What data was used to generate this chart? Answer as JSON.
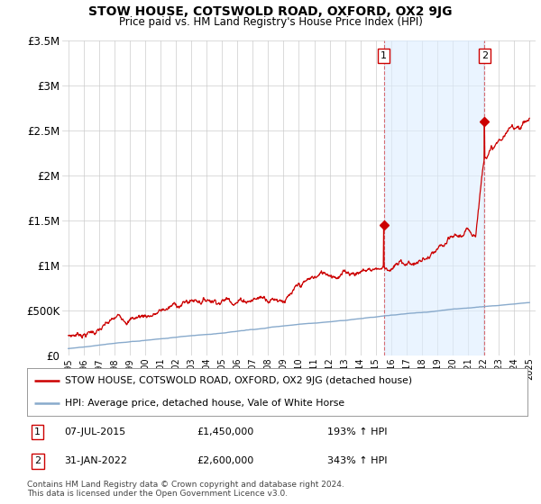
{
  "title": "STOW HOUSE, COTSWOLD ROAD, OXFORD, OX2 9JG",
  "subtitle": "Price paid vs. HM Land Registry's House Price Index (HPI)",
  "legend_line1": "STOW HOUSE, COTSWOLD ROAD, OXFORD, OX2 9JG (detached house)",
  "legend_line2": "HPI: Average price, detached house, Vale of White Horse",
  "annotation1_label": "1",
  "annotation1_date": "07-JUL-2015",
  "annotation1_price": "£1,450,000",
  "annotation1_hpi": "193% ↑ HPI",
  "annotation2_label": "2",
  "annotation2_date": "31-JAN-2022",
  "annotation2_price": "£2,600,000",
  "annotation2_hpi": "343% ↑ HPI",
  "footnote": "Contains HM Land Registry data © Crown copyright and database right 2024.\nThis data is licensed under the Open Government Licence v3.0.",
  "ylim": [
    0,
    3500000
  ],
  "yticks": [
    0,
    500000,
    1000000,
    1500000,
    2000000,
    2500000,
    3000000,
    3500000
  ],
  "ytick_labels": [
    "£0",
    "£500K",
    "£1M",
    "£1.5M",
    "£2M",
    "£2.5M",
    "£3M",
    "£3.5M"
  ],
  "red_color": "#cc0000",
  "blue_color": "#88aacc",
  "blue_fill_color": "#ddeeff",
  "marker1_x": 2015.52,
  "marker1_y": 1450000,
  "marker2_x": 2022.08,
  "marker2_y": 2600000,
  "bg_color": "#ffffff",
  "grid_color": "#cccccc",
  "xlim_left": 1994.6,
  "xlim_right": 2025.4
}
